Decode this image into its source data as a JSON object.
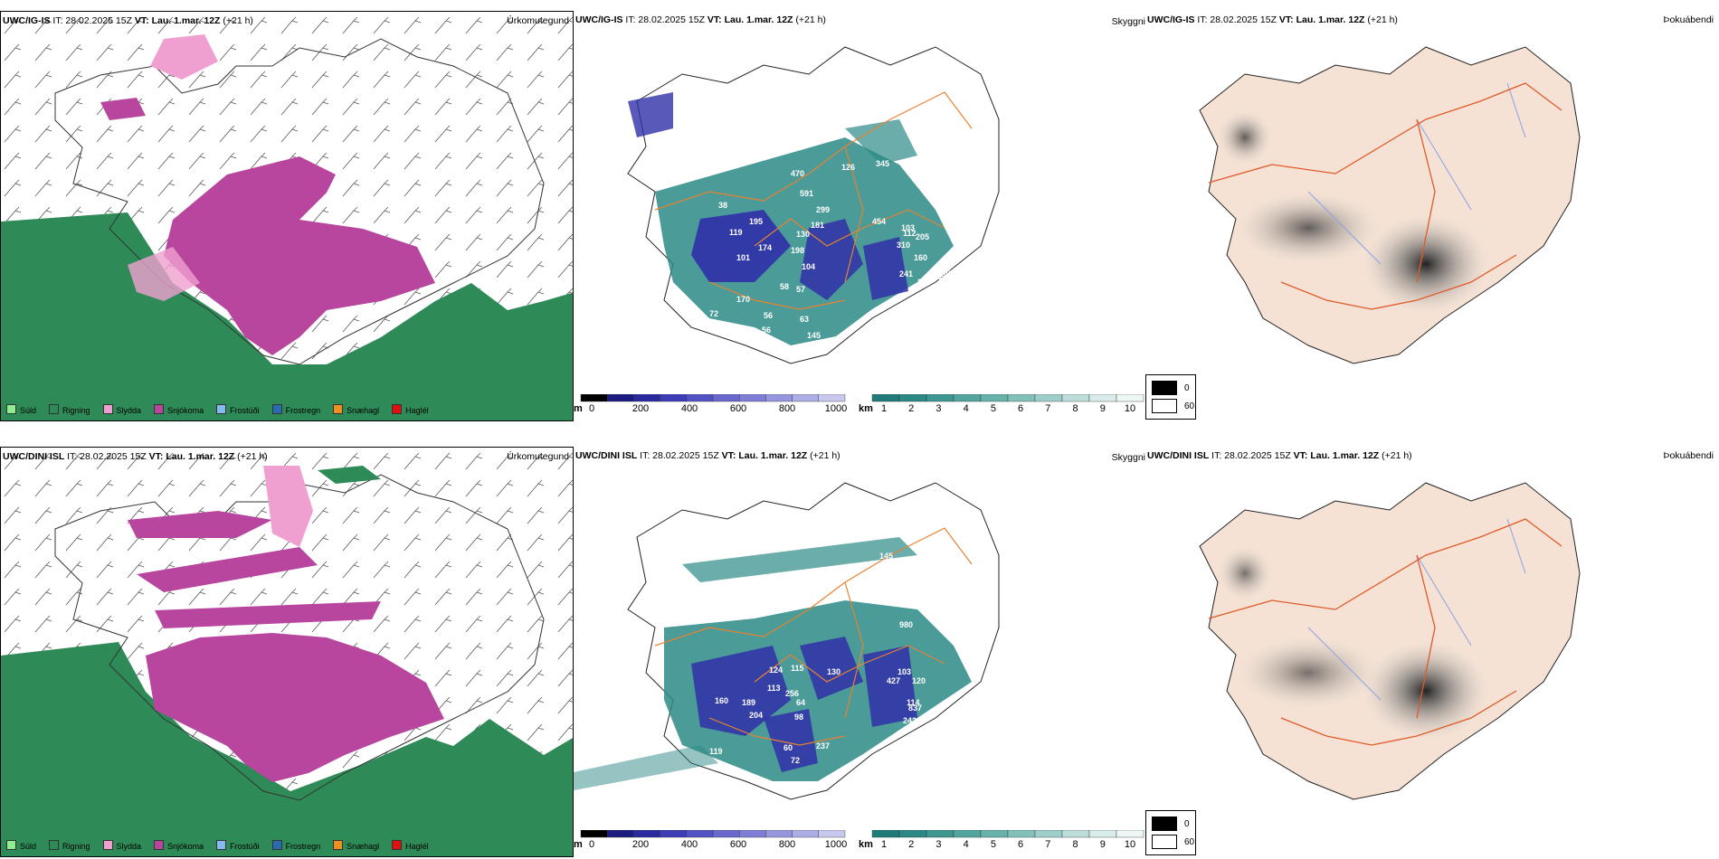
{
  "rows": [
    {
      "precip": {
        "model": "UWC/IG-IS",
        "init": " IT: 28.02.2025 15Z ",
        "valid_label": "VT: Lau. 1.mar. 12Z",
        "lead": " (+21 h)",
        "right_title": "Úrkomutegund"
      },
      "visibility": {
        "model": "UWC/IG-IS",
        "init": " IT: 28.02.2025 15Z ",
        "valid_label": "VT: Lau. 1.mar. 12Z",
        "lead": " (+21 h)",
        "right_title": "Skyggni",
        "labels": [
          "470",
          "126",
          "345",
          "591",
          "38",
          "299",
          "454",
          "103",
          "195",
          "181",
          "112",
          "130",
          "119",
          "205",
          "174",
          "198",
          "310",
          "160",
          "101",
          "104",
          "241",
          "239",
          "279",
          "245",
          "58",
          "57",
          "129",
          "126",
          "115",
          "170",
          "72",
          "56",
          "63",
          "56",
          "45",
          "52",
          "118",
          "145"
        ]
      },
      "cloud": {
        "model": "UWC/IG-IS",
        "init": " IT: 28.02.2025 15Z ",
        "valid_label": "VT: Lau. 1.mar. 12Z",
        "lead": " (+21 h)",
        "right_title": "Þokuábendi"
      }
    },
    {
      "precip": {
        "model": "UWC/DINI ISL",
        "init": " IT: 28.02.2025 15Z ",
        "valid_label": "VT: Lau. 1.mar. 12Z",
        "lead": " (+21 h)",
        "right_title": "Úrkomutegund"
      },
      "visibility": {
        "model": "UWC/DINI ISL",
        "init": " IT: 28.02.2025 15Z ",
        "valid_label": "VT: Lau. 1.mar. 12Z",
        "lead": " (+21 h)",
        "right_title": "Skyggni",
        "labels": [
          "172",
          "145",
          "133",
          "980",
          "124",
          "115",
          "130",
          "103",
          "427",
          "120",
          "113",
          "256",
          "64",
          "114",
          "189",
          "837",
          "242",
          "204",
          "98",
          "143",
          "60",
          "237",
          "72",
          "97",
          "81",
          "119",
          "160"
        ]
      },
      "cloud": {
        "model": "UWC/DINI ISL",
        "init": " IT: 28.02.2025 15Z ",
        "valid_label": "VT: Lau. 1.mar. 12Z",
        "lead": " (+21 h)",
        "right_title": "Þokuábendi"
      }
    }
  ],
  "precip_legend": [
    {
      "label": "Súld",
      "color": "#90ee90"
    },
    {
      "label": "Rigning",
      "color": "#2e8b57"
    },
    {
      "label": "Slydda",
      "color": "#f0a0d0"
    },
    {
      "label": "Snjókoma",
      "color": "#b8459e"
    },
    {
      "label": "Frostúði",
      "color": "#87b8ee"
    },
    {
      "label": "Frostregn",
      "color": "#2b6cb0"
    },
    {
      "label": "Snæhagl",
      "color": "#ee9020"
    },
    {
      "label": "Haglél",
      "color": "#e01010"
    }
  ],
  "height_scale": {
    "unit": "m",
    "ticks": [
      "0",
      "200",
      "400",
      "600",
      "800",
      "1000"
    ],
    "colors": [
      "#000000",
      "#1b1b80",
      "#2a2aa0",
      "#3d3db8",
      "#5252c4",
      "#6868ce",
      "#7e7ed6",
      "#9696de",
      "#aeaee6",
      "#c8c8ee"
    ]
  },
  "km_scale": {
    "unit": "km",
    "ticks": [
      "1",
      "2",
      "3",
      "4",
      "5",
      "6",
      "7",
      "8",
      "9",
      "10"
    ],
    "colors": [
      "#1f7a78",
      "#2c8884",
      "#3d9690",
      "#52a49e",
      "#68b2ac",
      "#82c0ba",
      "#9ececa",
      "#bcded9",
      "#d8ece9",
      "#eef7f5"
    ]
  },
  "opacity_legend": {
    "high": "0",
    "low": "60"
  },
  "colors": {
    "rain": "#2e8b57",
    "snow": "#b8459e",
    "sleet": "#f0a0d0",
    "drizzle": "#90ee90",
    "vis_green": "#2c8a86",
    "vis_blue": "#3030a8",
    "road": "#e8822e",
    "land": "#f5e2d4",
    "river": "#8aa0e8"
  }
}
